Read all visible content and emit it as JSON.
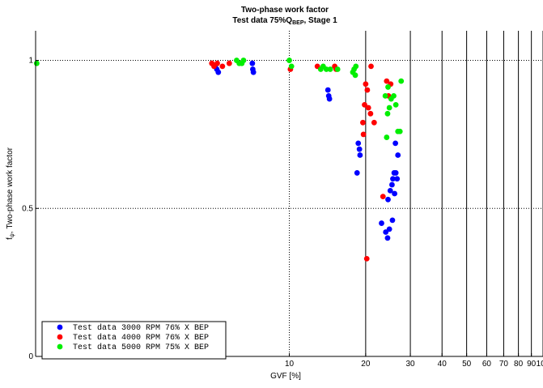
{
  "chart_data": {
    "type": "scatter",
    "title": "Two-phase work factor",
    "subtitle_parts": {
      "pre": "Test data 75%Q",
      "sub": "BEP",
      "post": ", Stage 1"
    },
    "xlabel": "GVF [%]",
    "ylabel_parts": {
      "pre": "f",
      "sub": "ψ",
      "post": ", Two-phase work factor"
    },
    "x_scale": "log",
    "xlim": [
      1,
      100
    ],
    "ylim": [
      0,
      1.1
    ],
    "x_ticks": [
      "10",
      "20",
      "30",
      "40",
      "50",
      "60",
      "70",
      "80",
      "90",
      "100"
    ],
    "x_tick_values": [
      10,
      20,
      30,
      40,
      50,
      60,
      70,
      80,
      90,
      100
    ],
    "y_ticks": [
      "0",
      "0.5",
      "1"
    ],
    "y_tick_values": [
      0,
      0.5,
      1
    ],
    "solid_vertical_lines_at": [
      20,
      30,
      40,
      50,
      60,
      70,
      80,
      90,
      100
    ],
    "dotted_vertical_lines_at": [
      10
    ],
    "dotted_horizontal_lines_at": [
      0.5,
      1
    ],
    "legend_position": "bottom-left",
    "series": [
      {
        "name": "Test data 3000 RPM 76% X BEP",
        "color": "#0000ff",
        "points": [
          [
            5.1,
            0.98
          ],
          [
            5.18,
            0.97
          ],
          [
            5.25,
            0.96
          ],
          [
            7.15,
            0.99
          ],
          [
            7.18,
            0.97
          ],
          [
            7.22,
            0.96
          ],
          [
            14.2,
            0.9
          ],
          [
            14.3,
            0.88
          ],
          [
            14.4,
            0.87
          ],
          [
            18.7,
            0.72
          ],
          [
            18.9,
            0.7
          ],
          [
            19.0,
            0.68
          ],
          [
            18.5,
            0.62
          ],
          [
            23.1,
            0.45
          ],
          [
            24.0,
            0.42
          ],
          [
            24.4,
            0.4
          ],
          [
            24.8,
            0.43
          ],
          [
            25.5,
            0.46
          ],
          [
            24.5,
            0.53
          ],
          [
            25.0,
            0.56
          ],
          [
            25.4,
            0.58
          ],
          [
            25.6,
            0.6
          ],
          [
            25.9,
            0.62
          ],
          [
            26.3,
            0.62
          ],
          [
            26.6,
            0.6
          ],
          [
            26.0,
            0.55
          ],
          [
            26.8,
            0.68
          ],
          [
            26.2,
            0.72
          ]
        ]
      },
      {
        "name": "Test data 4000 RPM 76% X BEP",
        "color": "#ff0000",
        "points": [
          [
            4.95,
            0.99
          ],
          [
            5.05,
            0.98
          ],
          [
            5.2,
            0.99
          ],
          [
            5.45,
            0.98
          ],
          [
            5.8,
            0.99
          ],
          [
            10.1,
            0.97
          ],
          [
            12.9,
            0.98
          ],
          [
            15.1,
            0.98
          ],
          [
            15.3,
            0.97
          ],
          [
            19.5,
            0.79
          ],
          [
            19.6,
            0.75
          ],
          [
            19.8,
            0.85
          ],
          [
            20.0,
            0.92
          ],
          [
            20.3,
            0.9
          ],
          [
            20.5,
            0.84
          ],
          [
            20.9,
            0.82
          ],
          [
            21.0,
            0.98
          ],
          [
            21.6,
            0.79
          ],
          [
            23.4,
            0.54
          ],
          [
            24.2,
            0.93
          ],
          [
            24.6,
            0.88
          ],
          [
            25.1,
            0.92
          ],
          [
            20.2,
            0.33
          ]
        ]
      },
      {
        "name": "Test data 5000 RPM 75% X BEP",
        "color": "#00ee00",
        "points": [
          [
            1.01,
            0.99
          ],
          [
            6.2,
            1.0
          ],
          [
            6.35,
            0.99
          ],
          [
            6.5,
            0.99
          ],
          [
            6.6,
            1.0
          ],
          [
            10.0,
            1.0
          ],
          [
            10.2,
            0.98
          ],
          [
            13.3,
            0.97
          ],
          [
            13.6,
            0.98
          ],
          [
            14.0,
            0.97
          ],
          [
            14.5,
            0.97
          ],
          [
            15.5,
            0.97
          ],
          [
            17.8,
            0.96
          ],
          [
            18.0,
            0.97
          ],
          [
            18.3,
            0.98
          ],
          [
            18.2,
            0.95
          ],
          [
            24.2,
            0.74
          ],
          [
            24.4,
            0.82
          ],
          [
            24.8,
            0.84
          ],
          [
            25.2,
            0.87
          ],
          [
            26.3,
            0.85
          ],
          [
            26.8,
            0.76
          ],
          [
            27.3,
            0.76
          ],
          [
            27.6,
            0.93
          ],
          [
            23.9,
            0.88
          ],
          [
            24.5,
            0.91
          ],
          [
            25.8,
            0.88
          ]
        ]
      }
    ]
  }
}
